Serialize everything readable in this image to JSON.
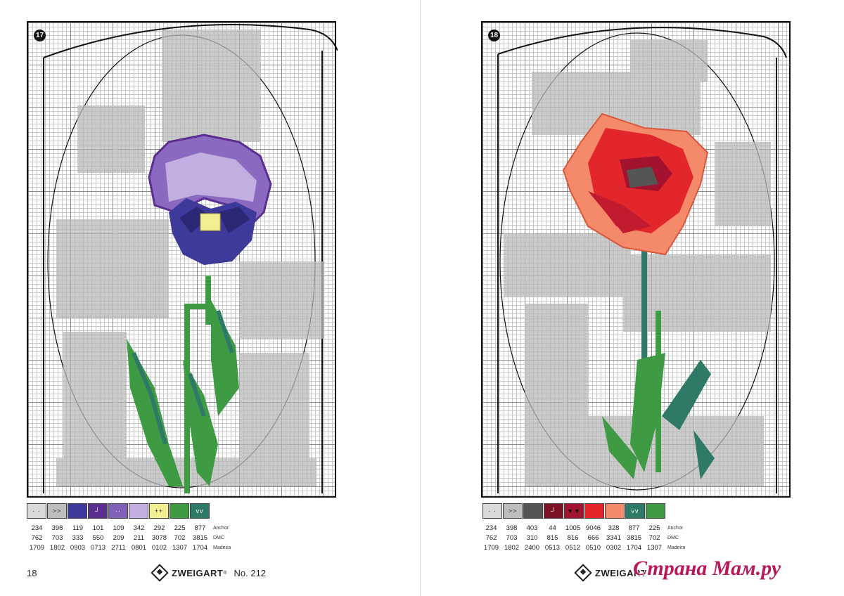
{
  "left_page": {
    "chart_number": "17",
    "page_number": "18",
    "brand": "ZWEIGART",
    "brand_mark": "®",
    "issue": "No. 212",
    "swatch_colors": [
      "#d9d9d9",
      "#bdbdbd",
      "#3d3a9a",
      "#5a2f8f",
      "#7f62b8",
      "#c2aee0",
      "#f2ef93",
      "#3f9a44",
      "#2f7a67"
    ],
    "swatch_symbols": [
      "· ·",
      ">>",
      "",
      "┘",
      "··",
      "",
      "++",
      "",
      "vv"
    ],
    "anchor": [
      "234",
      "398",
      "119",
      "101",
      "109",
      "342",
      "292",
      "225",
      "877"
    ],
    "dmc": [
      "762",
      "703",
      "333",
      "550",
      "209",
      "211",
      "3078",
      "702",
      "3815"
    ],
    "madeira": [
      "1709",
      "1802",
      "0903",
      "0713",
      "2711",
      "0801",
      "0102",
      "1307",
      "1704"
    ],
    "labels": {
      "anchor": "Anchor",
      "dmc": "DMC",
      "madeira": "Madeira"
    }
  },
  "right_page": {
    "chart_number": "18",
    "brand": "ZWEIGART",
    "swatch_colors": [
      "#d9d9d9",
      "#bdbdbd",
      "#555555",
      "#7a1326",
      "#a3122f",
      "#e2262b",
      "#f58a6b",
      "#2f7a67",
      "#3f9a44"
    ],
    "swatch_symbols": [
      "· ·",
      ">>",
      "",
      "┘",
      "▼▼",
      "",
      "",
      "vv",
      ""
    ],
    "anchor": [
      "234",
      "398",
      "403",
      "44",
      "1005",
      "9046",
      "328",
      "877",
      "225"
    ],
    "dmc": [
      "762",
      "703",
      "310",
      "815",
      "816",
      "666",
      "3341",
      "3815",
      "702"
    ],
    "madeira": [
      "1709",
      "1802",
      "2400",
      "0513",
      "0512",
      "0510",
      "0302",
      "1704",
      "1307"
    ],
    "labels": {
      "anchor": "Anchor",
      "dmc": "DMC",
      "madeira": "Madeira"
    }
  },
  "watermark": "Страна Мам.ру"
}
